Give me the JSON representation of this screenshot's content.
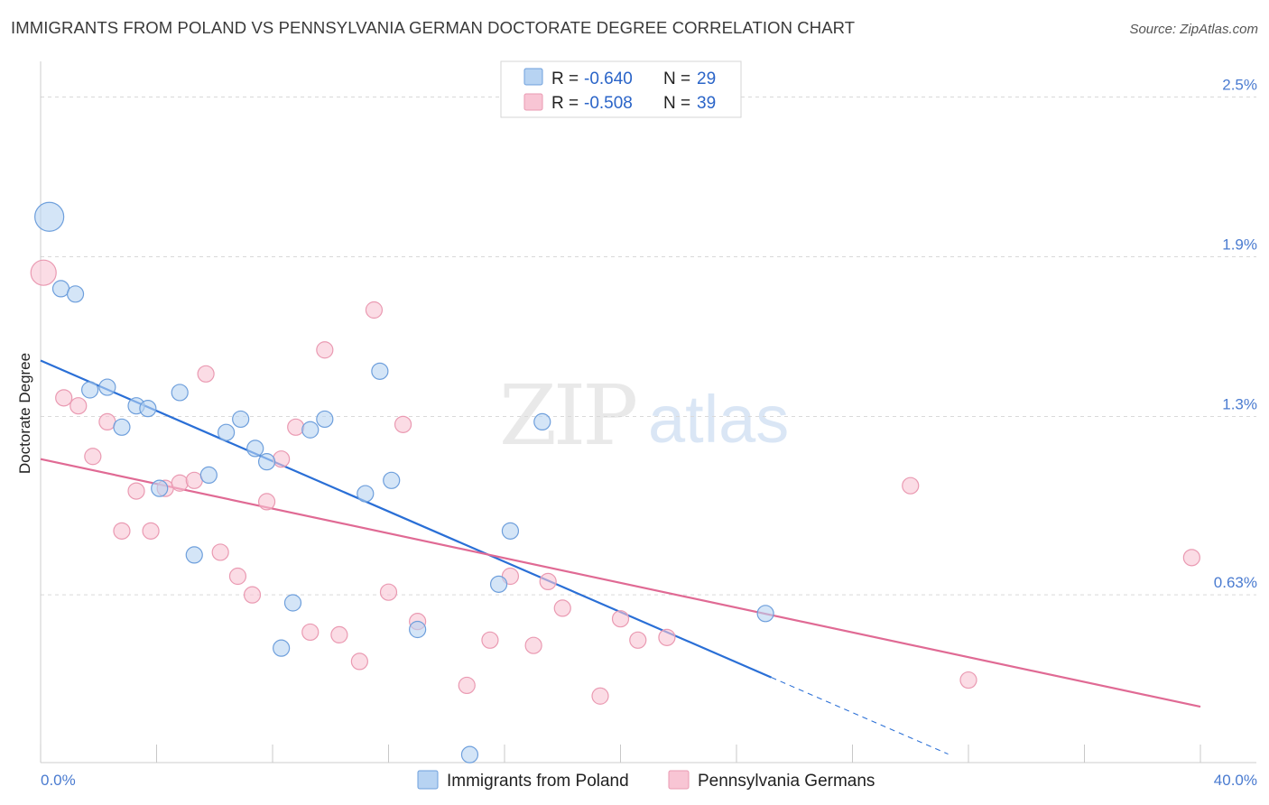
{
  "title": "IMMIGRANTS FROM POLAND VS PENNSYLVANIA GERMAN DOCTORATE DEGREE CORRELATION CHART",
  "source": "Source: ZipAtlas.com",
  "watermark": {
    "zip": "ZIP",
    "atlas": "atlas"
  },
  "colors": {
    "blue_fill": "#b7d3f2",
    "blue_stroke": "#6e9fdc",
    "blue_line": "#2a6fd6",
    "pink_fill": "#f8c5d4",
    "pink_stroke": "#ea9ab2",
    "pink_line": "#e06a94",
    "tick_label": "#4a7bd0",
    "grid": "#d9d9d9"
  },
  "legend": {
    "rows": [
      {
        "r_label": "R = ",
        "r_value": "-0.640",
        "n_label": "N = ",
        "n_value": "29",
        "series": "blue"
      },
      {
        "r_label": "R = ",
        "r_value": "-0.508",
        "n_label": "N = ",
        "n_value": "39",
        "series": "pink"
      }
    ]
  },
  "chart_data": {
    "type": "scatter",
    "title": "IMMIGRANTS FROM POLAND VS PENNSYLVANIA GERMAN DOCTORATE DEGREE CORRELATION CHART",
    "xlabel": "",
    "ylabel": "Doctorate Degree",
    "xlim": [
      0,
      40
    ],
    "ylim": [
      0,
      2.6
    ],
    "x_tick_labels": [
      {
        "value": 0,
        "label": "0.0%"
      },
      {
        "value": 40,
        "label": "40.0%"
      }
    ],
    "y_ticks": [
      {
        "value": 0.63,
        "label": "0.63%"
      },
      {
        "value": 1.3,
        "label": "1.3%"
      },
      {
        "value": 1.9,
        "label": "1.9%"
      },
      {
        "value": 2.5,
        "label": "2.5%"
      }
    ],
    "grid": "horizontal dashed",
    "legend_position": "top-center",
    "series": [
      {
        "name": "Immigrants from Poland",
        "color": "blue",
        "r": -0.64,
        "n": 29,
        "trend": {
          "x0": 0,
          "y0": 1.51,
          "x1": 25.2,
          "y1": 0.32,
          "dashed_to_x": 31.3
        },
        "points": [
          [
            0.3,
            2.05,
            16
          ],
          [
            0.7,
            1.78,
            9
          ],
          [
            1.2,
            1.76,
            9
          ],
          [
            1.7,
            1.4,
            9
          ],
          [
            2.3,
            1.41,
            9
          ],
          [
            2.8,
            1.26,
            9
          ],
          [
            3.3,
            1.34,
            9
          ],
          [
            3.7,
            1.33,
            9
          ],
          [
            4.1,
            1.03,
            9
          ],
          [
            4.8,
            1.39,
            9
          ],
          [
            5.3,
            0.78,
            9
          ],
          [
            5.8,
            1.08,
            9
          ],
          [
            6.4,
            1.24,
            9
          ],
          [
            6.9,
            1.29,
            9
          ],
          [
            7.4,
            1.18,
            9
          ],
          [
            7.8,
            1.13,
            9
          ],
          [
            8.3,
            0.43,
            9
          ],
          [
            8.7,
            0.6,
            9
          ],
          [
            9.3,
            1.25,
            9
          ],
          [
            9.8,
            1.29,
            9
          ],
          [
            11.2,
            1.01,
            9
          ],
          [
            11.7,
            1.47,
            9
          ],
          [
            12.1,
            1.06,
            9
          ],
          [
            13.0,
            0.5,
            9
          ],
          [
            14.8,
            0.03,
            9
          ],
          [
            15.8,
            0.67,
            9
          ],
          [
            16.2,
            0.87,
            9
          ],
          [
            17.3,
            1.28,
            9
          ],
          [
            25.0,
            0.56,
            9
          ]
        ]
      },
      {
        "name": "Pennsylvania Germans",
        "color": "pink",
        "r": -0.508,
        "n": 39,
        "trend": {
          "x0": 0,
          "y0": 1.14,
          "x1": 40,
          "y1": 0.21
        },
        "points": [
          [
            0.1,
            1.84,
            14
          ],
          [
            0.8,
            1.37,
            9
          ],
          [
            1.3,
            1.34,
            9
          ],
          [
            1.8,
            1.15,
            9
          ],
          [
            2.3,
            1.28,
            9
          ],
          [
            2.8,
            0.87,
            9
          ],
          [
            3.3,
            1.02,
            9
          ],
          [
            3.8,
            0.87,
            9
          ],
          [
            4.3,
            1.03,
            9
          ],
          [
            4.8,
            1.05,
            9
          ],
          [
            5.3,
            1.06,
            9
          ],
          [
            5.7,
            1.46,
            9
          ],
          [
            6.2,
            0.79,
            9
          ],
          [
            6.8,
            0.7,
            9
          ],
          [
            7.3,
            0.63,
            9
          ],
          [
            7.8,
            0.98,
            9
          ],
          [
            8.3,
            1.14,
            9
          ],
          [
            8.8,
            1.26,
            9
          ],
          [
            9.3,
            0.49,
            9
          ],
          [
            9.8,
            1.55,
            9
          ],
          [
            10.3,
            0.48,
            9
          ],
          [
            11.0,
            0.38,
            9
          ],
          [
            11.5,
            1.7,
            9
          ],
          [
            12.0,
            0.64,
            9
          ],
          [
            12.5,
            1.27,
            9
          ],
          [
            13.0,
            0.53,
            9
          ],
          [
            14.7,
            0.29,
            9
          ],
          [
            15.5,
            0.46,
            9
          ],
          [
            16.2,
            0.7,
            9
          ],
          [
            17.0,
            0.44,
            9
          ],
          [
            17.5,
            0.68,
            9
          ],
          [
            18.0,
            0.58,
            9
          ],
          [
            19.3,
            0.25,
            9
          ],
          [
            20.0,
            0.54,
            9
          ],
          [
            20.6,
            0.46,
            9
          ],
          [
            21.6,
            0.47,
            9
          ],
          [
            30.0,
            1.04,
            9
          ],
          [
            32.0,
            0.31,
            9
          ],
          [
            39.7,
            0.77,
            9
          ]
        ]
      }
    ]
  }
}
